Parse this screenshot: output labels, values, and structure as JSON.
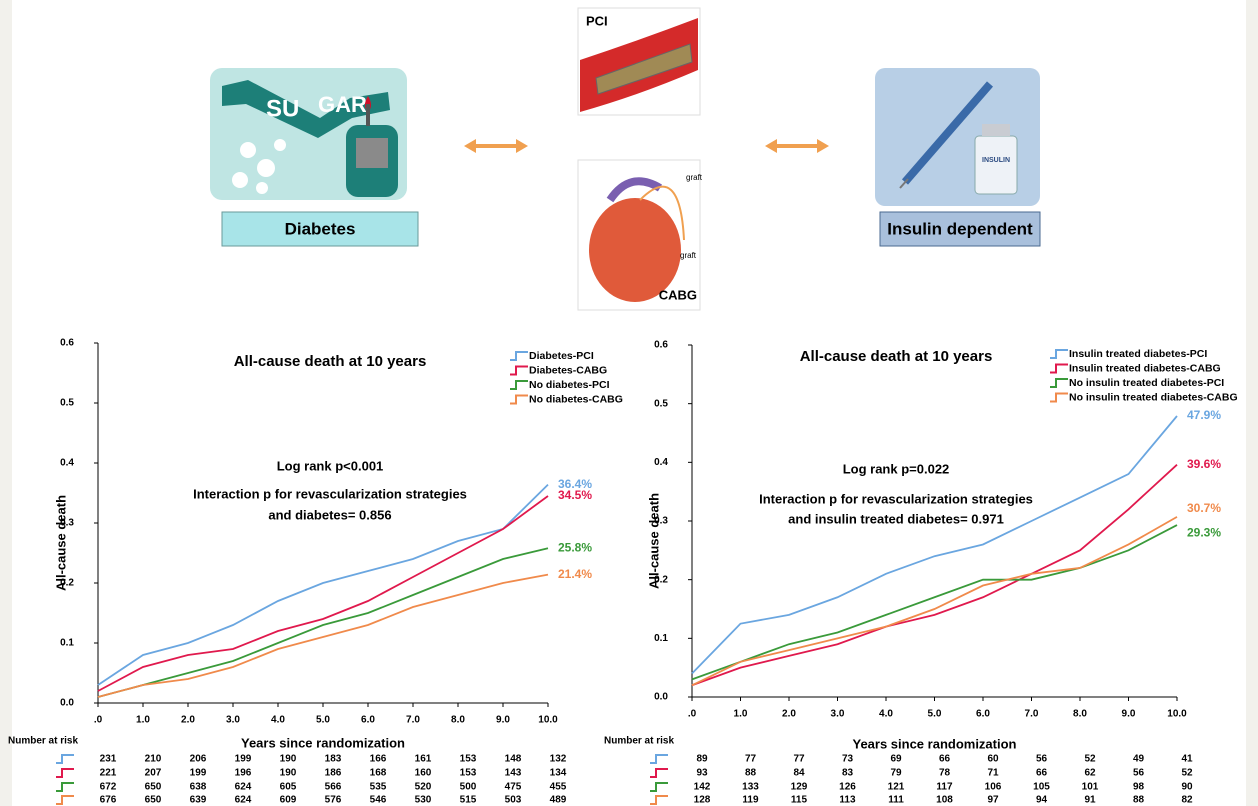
{
  "diagram": {
    "pci": "PCI",
    "cabg": "CABG",
    "graft_top": "graft",
    "graft_bottom": "graft",
    "sugar": [
      "SU",
      "GAR"
    ],
    "insulin_vial": "INSULIN",
    "diabetes": "Diabetes",
    "insulin_dependent": "Insulin dependent"
  },
  "chart_data": [
    {
      "type": "line",
      "title": "All-cause death at 10 years",
      "annotations": [
        "Log rank p<0.001",
        "Interaction p for revascularization strategies",
        "and diabetes= 0.856"
      ],
      "y_label": "All-cause death",
      "x_label": "Years since randomization",
      "xlim": [
        0,
        10
      ],
      "ylim": [
        0,
        0.6
      ],
      "xticks": [
        {
          "value": 0,
          "label": ".0"
        },
        {
          "value": 1,
          "label": "1.0"
        },
        {
          "value": 2,
          "label": "2.0"
        },
        {
          "value": 3,
          "label": "3.0"
        },
        {
          "value": 4,
          "label": "4.0"
        },
        {
          "value": 5,
          "label": "5.0"
        },
        {
          "value": 6,
          "label": "6.0"
        },
        {
          "value": 7,
          "label": "7.0"
        },
        {
          "value": 8,
          "label": "8.0"
        },
        {
          "value": 9,
          "label": "9.0"
        },
        {
          "value": 10,
          "label": "10.0"
        }
      ],
      "yticks": [
        {
          "value": 0,
          "label": "0.0"
        },
        0.1,
        0.2,
        0.3,
        0.4,
        0.5,
        0.6
      ],
      "x": [
        0,
        1,
        2,
        3,
        4,
        5,
        6,
        7,
        8,
        9,
        10
      ],
      "series": [
        {
          "name": "Diabetes-PCI",
          "color": "#6aa6e0",
          "values": [
            0.03,
            0.08,
            0.1,
            0.13,
            0.17,
            0.2,
            0.22,
            0.24,
            0.27,
            0.29,
            0.364
          ],
          "end_label": "36.4%"
        },
        {
          "name": "Diabetes-CABG",
          "color": "#e0194d",
          "values": [
            0.02,
            0.06,
            0.08,
            0.09,
            0.12,
            0.14,
            0.17,
            0.21,
            0.25,
            0.29,
            0.345
          ],
          "end_label": "34.5%"
        },
        {
          "name": "No diabetes-PCI",
          "color": "#3a9a3a",
          "values": [
            0.01,
            0.03,
            0.05,
            0.07,
            0.1,
            0.13,
            0.15,
            0.18,
            0.21,
            0.24,
            0.258
          ],
          "end_label": "25.8%"
        },
        {
          "name": "No diabetes-CABG",
          "color": "#f08a4b",
          "values": [
            0.01,
            0.03,
            0.04,
            0.06,
            0.09,
            0.11,
            0.13,
            0.16,
            0.18,
            0.2,
            0.214
          ],
          "end_label": "21.4%"
        }
      ],
      "risk_table": {
        "label": "Number at risk",
        "rows": [
          [
            231,
            210,
            206,
            199,
            190,
            183,
            166,
            161,
            153,
            148,
            132
          ],
          [
            221,
            207,
            199,
            196,
            190,
            186,
            168,
            160,
            153,
            143,
            134
          ],
          [
            672,
            650,
            638,
            624,
            605,
            566,
            535,
            520,
            500,
            475,
            455
          ],
          [
            676,
            650,
            639,
            624,
            609,
            576,
            546,
            530,
            515,
            503,
            489
          ]
        ]
      }
    },
    {
      "type": "line",
      "title": "All-cause death at 10 years",
      "annotations": [
        "Log rank p=0.022",
        "Interaction p for revascularization strategies",
        "and insulin treated diabetes= 0.971"
      ],
      "y_label": "All-cause death",
      "x_label": "Years since randomization",
      "xlim": [
        0,
        10
      ],
      "ylim": [
        0,
        0.6
      ],
      "xticks": [
        {
          "value": 0,
          "label": ".0"
        },
        {
          "value": 1,
          "label": "1.0"
        },
        {
          "value": 2,
          "label": "2.0"
        },
        {
          "value": 3,
          "label": "3.0"
        },
        {
          "value": 4,
          "label": "4.0"
        },
        {
          "value": 5,
          "label": "5.0"
        },
        {
          "value": 6,
          "label": "6.0"
        },
        {
          "value": 7,
          "label": "7.0"
        },
        {
          "value": 8,
          "label": "8.0"
        },
        {
          "value": 9,
          "label": "9.0"
        },
        {
          "value": 10,
          "label": "10.0"
        }
      ],
      "yticks": [
        {
          "value": 0,
          "label": "0.0"
        },
        0.1,
        0.2,
        0.3,
        0.4,
        0.5,
        0.6
      ],
      "x": [
        0,
        1,
        2,
        3,
        4,
        5,
        6,
        7,
        8,
        9,
        10
      ],
      "series": [
        {
          "name": "Insulin treated diabetes-PCI",
          "color": "#6aa6e0",
          "values": [
            0.04,
            0.125,
            0.14,
            0.17,
            0.21,
            0.24,
            0.26,
            0.3,
            0.34,
            0.38,
            0.479
          ],
          "end_label": "47.9%"
        },
        {
          "name": "Insulin treated diabetes-CABG",
          "color": "#e0194d",
          "values": [
            0.02,
            0.05,
            0.07,
            0.09,
            0.12,
            0.14,
            0.17,
            0.21,
            0.25,
            0.32,
            0.396
          ],
          "end_label": "39.6%"
        },
        {
          "name": "No insulin treated diabetes-PCI",
          "color": "#3a9a3a",
          "values": [
            0.03,
            0.06,
            0.09,
            0.11,
            0.14,
            0.17,
            0.2,
            0.2,
            0.22,
            0.25,
            0.293
          ],
          "end_label": "29.3%"
        },
        {
          "name": "No insulin treated diabetes-CABG",
          "color": "#f08a4b",
          "values": [
            0.02,
            0.06,
            0.08,
            0.1,
            0.12,
            0.15,
            0.19,
            0.21,
            0.22,
            0.26,
            0.307
          ],
          "end_label": "30.7%"
        }
      ],
      "risk_table": {
        "label": "Number at risk",
        "rows": [
          [
            89,
            77,
            77,
            73,
            69,
            66,
            60,
            56,
            52,
            49,
            41
          ],
          [
            93,
            88,
            84,
            83,
            79,
            78,
            71,
            66,
            62,
            56,
            52
          ],
          [
            142,
            133,
            129,
            126,
            121,
            117,
            106,
            105,
            101,
            98,
            90
          ],
          [
            128,
            119,
            115,
            113,
            111,
            108,
            97,
            94,
            91,
            88,
            82
          ]
        ]
      }
    }
  ]
}
